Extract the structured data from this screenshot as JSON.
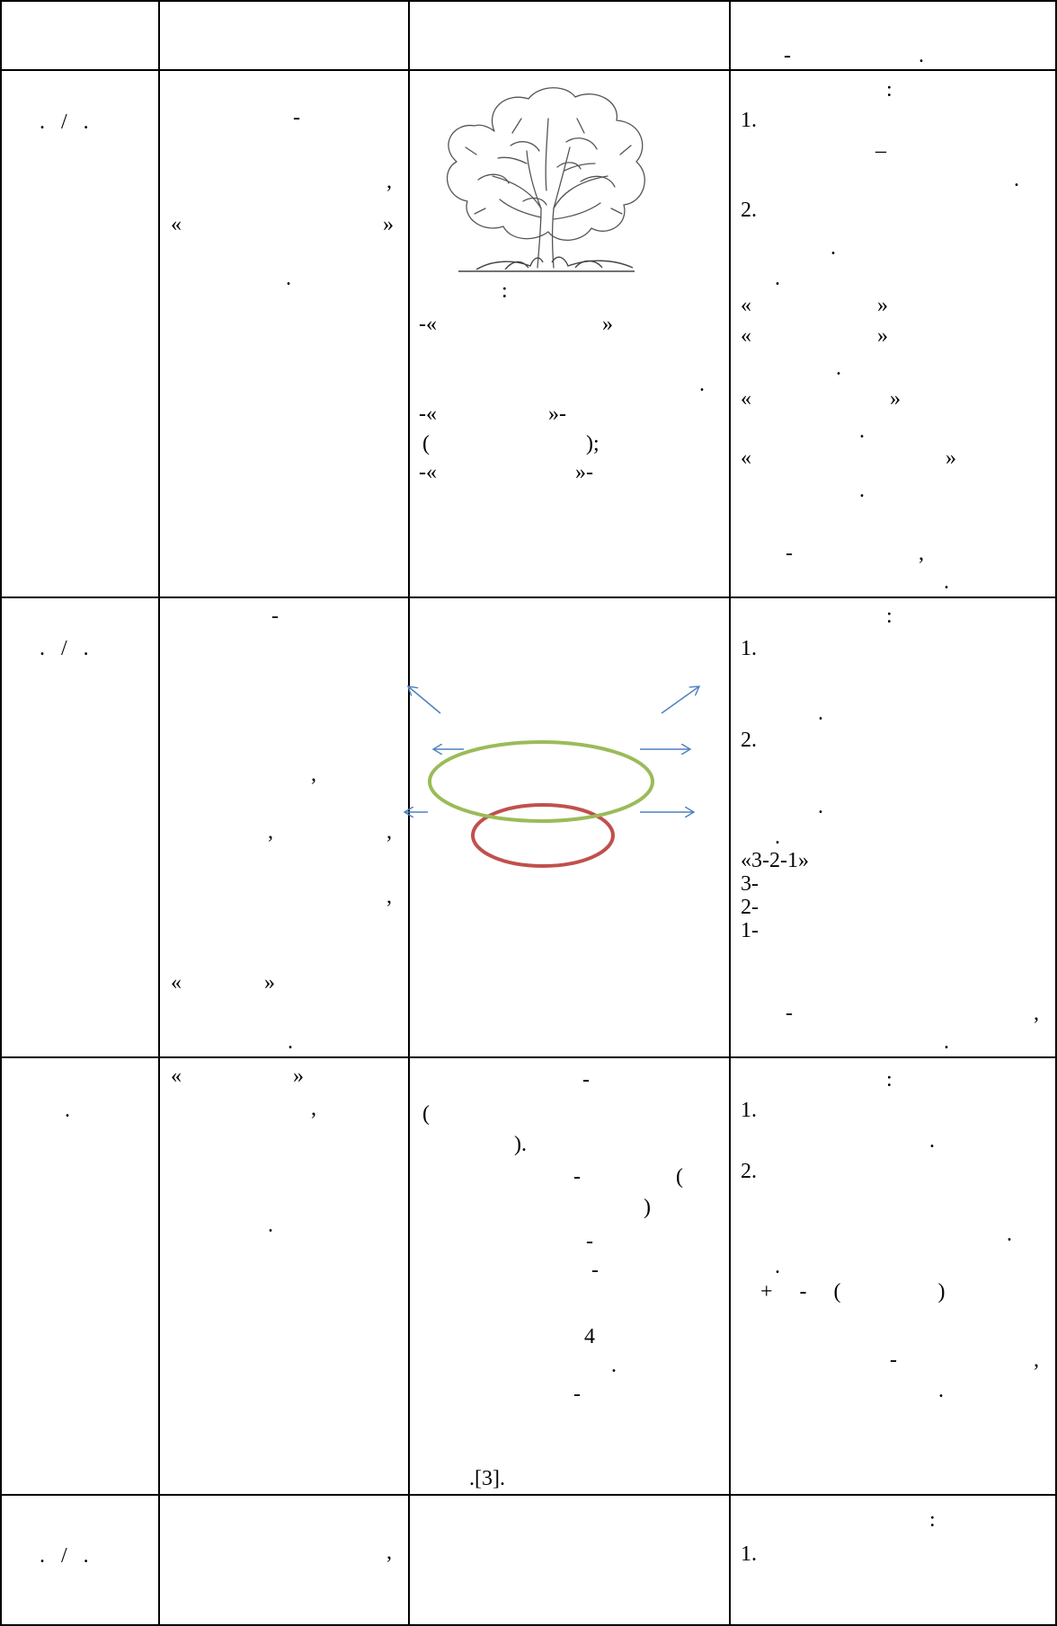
{
  "table": {
    "header": {
      "col4": "-                .",
      "col4_dash": "-",
      "col4_dot": "."
    },
    "row1": {
      "col1": ".   /   .",
      "col2": {
        "dash": "-",
        "comma": ",",
        "quote_open": "«",
        "quote_close": "»",
        "dot": "."
      },
      "col3": {
        "colon": ":",
        "line1": "-«",
        "line1_close": "»",
        "dot": ".",
        "line2": "-«",
        "line2_close": "»-",
        "paren_open": "(",
        "paren_close": ");",
        "line3": "-«",
        "line3_close": "»-"
      },
      "col4": {
        "colon": ":",
        "item1": "1.",
        "emdash": "–",
        "dot1": ".",
        "item2": "2.",
        "dot2": ".",
        "dot3": ".",
        "q1_open": "«",
        "q1_close": "»",
        "q2_open": "«",
        "q2_close": "»",
        "dot4": ".",
        "q3_open": "«",
        "q3_close": "»",
        "dot5": ".",
        "q4_open": "«",
        "q4_close": "»",
        "dot6": ".",
        "dash": "-",
        "comma": ",",
        "dot7": "."
      }
    },
    "row2": {
      "col1": ".   /   .",
      "col2": {
        "dash": "-",
        "comma1": ",",
        "comma2": ",",
        "comma3": ",",
        "comma4": ",",
        "quote_open": "«",
        "quote_close": "»",
        "dot": "."
      },
      "col4": {
        "colon": ":",
        "item1": "1.",
        "dot1": ".",
        "item2": "2.",
        "dot2": ".",
        "dot3": ".",
        "l1": "«3-2-1»",
        "l2": "3-",
        "l3": "2-",
        "l4": "1-",
        "dash": "-",
        "comma": ",",
        "dot4": "."
      }
    },
    "row3": {
      "col1": ".",
      "col2": {
        "quote_open": "«",
        "quote_close": "»",
        "comma": ",",
        "dot": "."
      },
      "col3": {
        "dash1": "-",
        "paren_open": "(",
        "paren_close": ").",
        "dash2": "-",
        "paren2_open": "(",
        "paren2_close": ")",
        "dash3": "-",
        "dash4": "-",
        "num": "4",
        "dot": ".",
        "dash5": "-",
        "ref": ".[3]."
      },
      "col4": {
        "colon": ":",
        "item1": "1.",
        "dot1": ".",
        "item2": "2.",
        "dot2": ".",
        "dot3": ".",
        "plusminus": "+     -     (                  )",
        "dash": "-",
        "comma": ",",
        "dot4": "."
      }
    },
    "row4": {
      "col1": ".   /   .",
      "col2": {
        "comma": ","
      },
      "col4": {
        "colon": ":",
        "item1": "1."
      }
    }
  },
  "colors": {
    "ellipse_green": "#9bbb59",
    "ellipse_red": "#c0504d",
    "arrow_blue": "#4f81bd"
  }
}
